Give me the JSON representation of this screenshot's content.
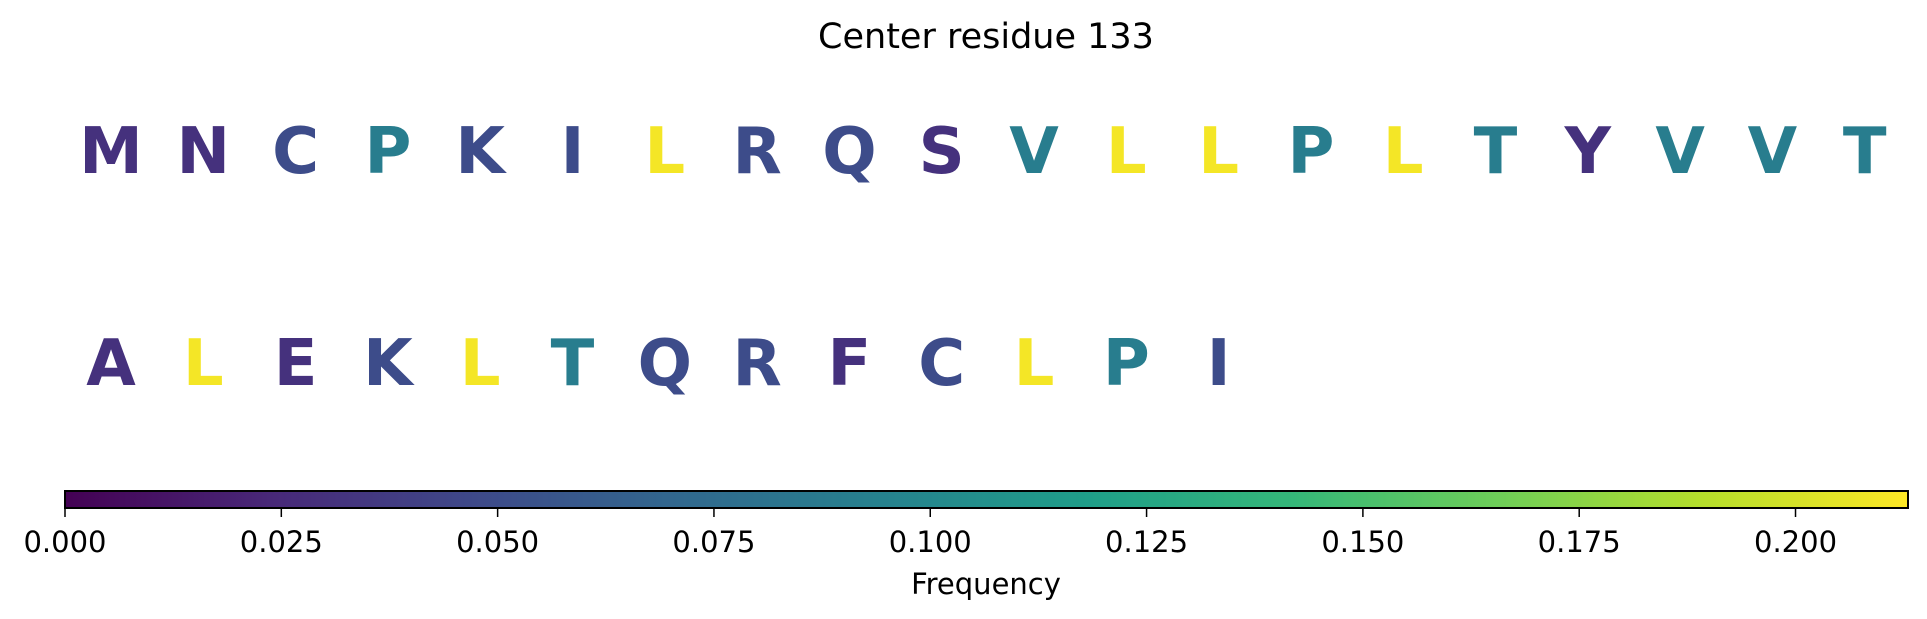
{
  "chart_data": {
    "type": "sequence-logo",
    "title": "Center residue 133",
    "residues": [
      {
        "letter": "M",
        "value": 0.03
      },
      {
        "letter": "N",
        "value": 0.03
      },
      {
        "letter": "C",
        "value": 0.05
      },
      {
        "letter": "P",
        "value": 0.09
      },
      {
        "letter": "K",
        "value": 0.05
      },
      {
        "letter": "I",
        "value": 0.05
      },
      {
        "letter": "L",
        "value": 0.21
      },
      {
        "letter": "R",
        "value": 0.05
      },
      {
        "letter": "Q",
        "value": 0.05
      },
      {
        "letter": "S",
        "value": 0.03
      },
      {
        "letter": "V",
        "value": 0.09
      },
      {
        "letter": "L",
        "value": 0.21
      },
      {
        "letter": "L",
        "value": 0.21
      },
      {
        "letter": "P",
        "value": 0.09
      },
      {
        "letter": "L",
        "value": 0.21
      },
      {
        "letter": "T",
        "value": 0.09
      },
      {
        "letter": "Y",
        "value": 0.03
      },
      {
        "letter": "V",
        "value": 0.09
      },
      {
        "letter": "V",
        "value": 0.09
      },
      {
        "letter": "T",
        "value": 0.09
      },
      {
        "letter": "A",
        "value": 0.03
      },
      {
        "letter": "L",
        "value": 0.21
      },
      {
        "letter": "E",
        "value": 0.03
      },
      {
        "letter": "K",
        "value": 0.05
      },
      {
        "letter": "L",
        "value": 0.21
      },
      {
        "letter": "T",
        "value": 0.09
      },
      {
        "letter": "Q",
        "value": 0.05
      },
      {
        "letter": "R",
        "value": 0.05
      },
      {
        "letter": "F",
        "value": 0.03
      },
      {
        "letter": "C",
        "value": 0.05
      },
      {
        "letter": "L",
        "value": 0.21
      },
      {
        "letter": "P",
        "value": 0.09
      },
      {
        "letter": "I",
        "value": 0.05
      }
    ],
    "colorbar": {
      "label": "Frequency",
      "range": [
        0,
        0.213
      ],
      "colormap": "viridis",
      "ticks": [
        {
          "value": 0.0,
          "label": "0.000"
        },
        {
          "value": 0.025,
          "label": "0.025"
        },
        {
          "value": 0.05,
          "label": "0.050"
        },
        {
          "value": 0.075,
          "label": "0.075"
        },
        {
          "value": 0.1,
          "label": "0.100"
        },
        {
          "value": 0.125,
          "label": "0.125"
        },
        {
          "value": 0.15,
          "label": "0.150"
        },
        {
          "value": 0.175,
          "label": "0.175"
        },
        {
          "value": 0.2,
          "label": "0.200"
        }
      ],
      "stops": [
        "#440154",
        "#482878",
        "#3e4989",
        "#31688e",
        "#26828e",
        "#1f9e89",
        "#35b779",
        "#6ece58",
        "#b5de2b",
        "#fde725"
      ]
    }
  }
}
